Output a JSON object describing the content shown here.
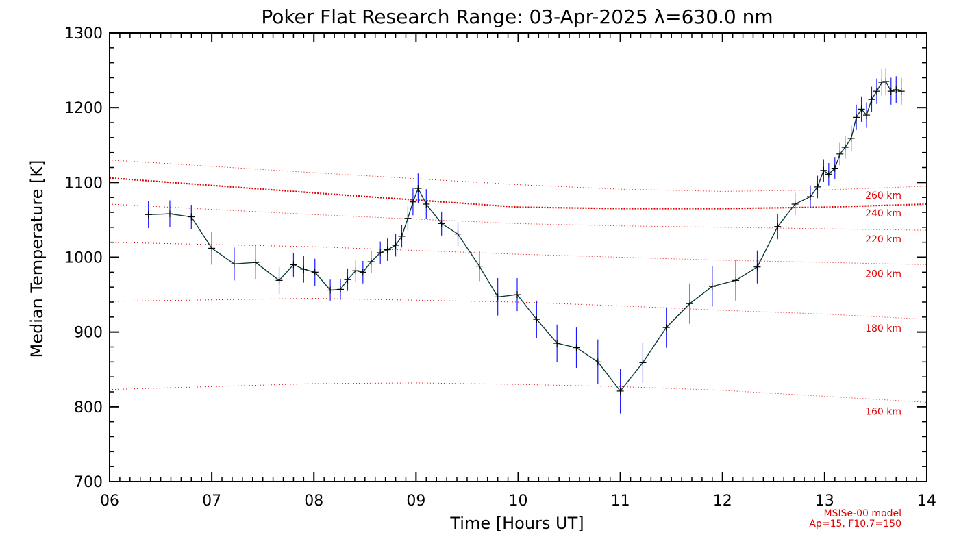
{
  "chart_data": {
    "type": "line",
    "title": "Poker Flat Research Range: 03-Apr-2025 λ=630.0 nm",
    "xlabel": "Time [Hours UT]",
    "ylabel": "Median Temperature [K]",
    "xlim": [
      6,
      14
    ],
    "ylim": [
      700,
      1300
    ],
    "x_tick_labels": [
      "06",
      "07",
      "08",
      "09",
      "10",
      "11",
      "12",
      "13",
      "14"
    ],
    "y_tick_labels": [
      "700",
      "800",
      "900",
      "1000",
      "1100",
      "1200",
      "1300"
    ],
    "colors": {
      "data_line": "#0a3a3a",
      "error_bar": "#1a1aff",
      "marker": "#000000",
      "model": "#e00000"
    },
    "series": [
      {
        "name": "Median Temperature",
        "x": [
          6.38,
          6.59,
          6.8,
          7.0,
          7.22,
          7.43,
          7.66,
          7.8,
          7.9,
          8.01,
          8.16,
          8.26,
          8.33,
          8.41,
          8.48,
          8.56,
          8.65,
          8.72,
          8.8,
          8.86,
          8.92,
          8.97,
          9.02,
          9.1,
          9.25,
          9.41,
          9.62,
          9.8,
          9.99,
          10.18,
          10.38,
          10.57,
          10.78,
          11.0,
          11.22,
          11.45,
          11.68,
          11.9,
          12.13,
          12.34,
          12.54,
          12.71,
          12.86,
          12.93,
          12.99,
          13.04,
          13.1,
          13.15,
          13.2,
          13.26,
          13.31,
          13.36,
          13.41,
          13.46,
          13.51,
          13.56,
          13.6,
          13.65,
          13.7,
          13.75
        ],
        "y": [
          1057,
          1058,
          1054,
          1012,
          991,
          993,
          969,
          990,
          984,
          980,
          956,
          957,
          970,
          982,
          980,
          994,
          1006,
          1010,
          1016,
          1028,
          1052,
          1074,
          1092,
          1071,
          1045,
          1031,
          988,
          947,
          950,
          917,
          885,
          879,
          860,
          821,
          859,
          906,
          938,
          961,
          969,
          987,
          1041,
          1071,
          1081,
          1094,
          1116,
          1111,
          1119,
          1138,
          1147,
          1159,
          1187,
          1198,
          1190,
          1211,
          1222,
          1234,
          1235,
          1222,
          1224,
          1222
        ],
        "error": [
          18,
          18,
          16,
          22,
          22,
          22,
          18,
          16,
          18,
          18,
          14,
          14,
          15,
          15,
          15,
          15,
          15,
          15,
          15,
          15,
          16,
          18,
          20,
          20,
          16,
          16,
          20,
          25,
          22,
          25,
          25,
          27,
          30,
          30,
          27,
          27,
          27,
          27,
          27,
          22,
          17,
          15,
          15,
          15,
          15,
          15,
          15,
          15,
          15,
          17,
          17,
          17,
          17,
          17,
          17,
          18,
          18,
          18,
          18,
          18
        ]
      }
    ],
    "model_curves": [
      {
        "label": "260 km",
        "x": [
          6,
          8,
          10,
          11,
          12,
          13,
          14
        ],
        "y": [
          1130,
          1113,
          1097,
          1091,
          1088,
          1090,
          1095
        ]
      },
      {
        "label": "240 km",
        "x": [
          6,
          8,
          10,
          11,
          12,
          13,
          14
        ],
        "y": [
          1106,
          1086,
          1067,
          1065,
          1065,
          1067,
          1071
        ]
      },
      {
        "label": "220 km",
        "x": [
          6,
          8,
          10,
          11,
          12,
          13,
          14
        ],
        "y": [
          1071,
          1057,
          1045,
          1042,
          1040,
          1038,
          1036
        ]
      },
      {
        "label": "200 km",
        "x": [
          6,
          8,
          10,
          11,
          12,
          13,
          14
        ],
        "y": [
          1020,
          1014,
          1004,
          1000,
          996,
          993,
          990
        ]
      },
      {
        "label": "180 km",
        "x": [
          6,
          8,
          10,
          11,
          12,
          13,
          14
        ],
        "y": [
          941,
          945,
          940,
          935,
          929,
          924,
          917
        ]
      },
      {
        "label": "160 km",
        "x": [
          6,
          8,
          9,
          10,
          11,
          12,
          13,
          14
        ],
        "y": [
          823,
          831,
          832,
          830,
          827,
          822,
          814,
          806
        ]
      }
    ],
    "model_note": [
      "MSISe-00 model",
      "Ap=15, F10.7=150"
    ]
  }
}
